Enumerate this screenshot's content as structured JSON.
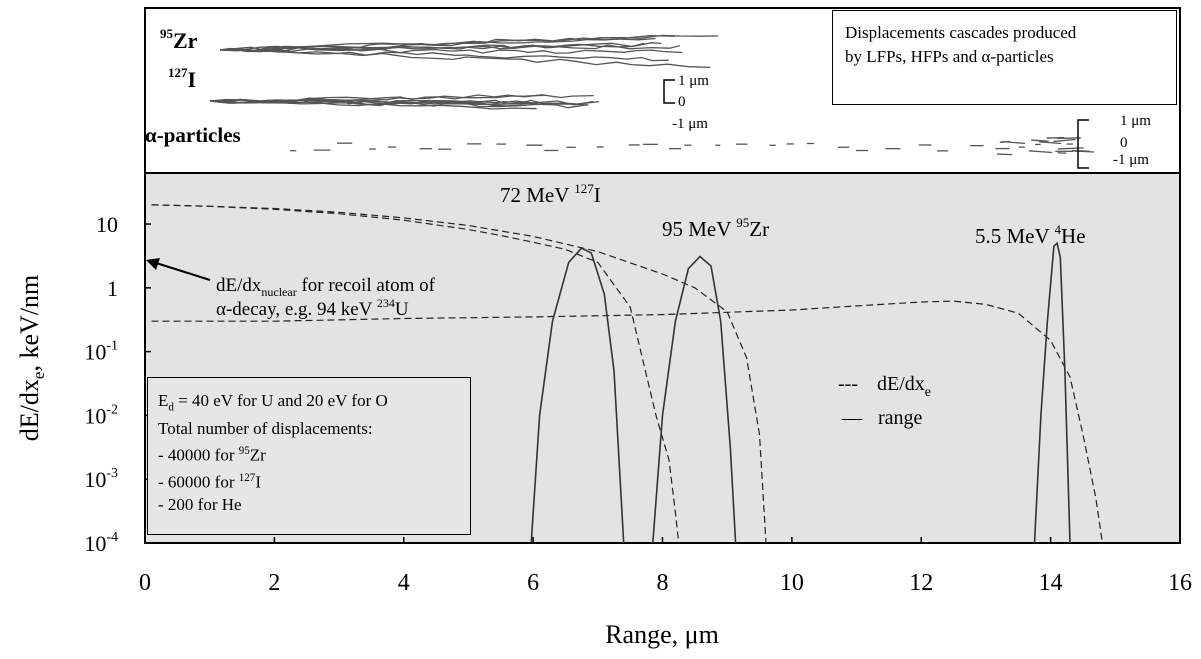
{
  "chart_data": {
    "type": "line",
    "xlabel": "Range, μm",
    "ylabel": "dE/dx",
    "ylabel_sub": "e",
    "ylabel_unit": ", keV/nm",
    "xlim": [
      0,
      16
    ],
    "ylim_log": [
      -4,
      1.8
    ],
    "x_ticks": [
      "0",
      "2",
      "4",
      "6",
      "8",
      "10",
      "12",
      "14",
      "16"
    ],
    "y_ticks": [
      {
        "base": "10",
        "exp": ""
      },
      {
        "base": "1",
        "exp": ""
      },
      {
        "base": "10",
        "exp": "-1"
      },
      {
        "base": "10",
        "exp": "-2"
      },
      {
        "base": "10",
        "exp": "-3"
      },
      {
        "base": "10",
        "exp": "-4"
      }
    ],
    "series": [
      {
        "ion": "127I",
        "style": "dashed",
        "points": [
          [
            0.1,
            20
          ],
          [
            1,
            19
          ],
          [
            2,
            17
          ],
          [
            3,
            14.5
          ],
          [
            4,
            11.5
          ],
          [
            5,
            8.2
          ],
          [
            5.5,
            6.6
          ],
          [
            6,
            5.2
          ],
          [
            6.5,
            4.0
          ],
          [
            7,
            2.5
          ],
          [
            7.5,
            0.5
          ],
          [
            7.9,
            0.01
          ],
          [
            8.1,
            0.002
          ],
          [
            8.2,
            0.0003
          ],
          [
            8.25,
            0.0001
          ]
        ]
      },
      {
        "ion": "95Zr",
        "style": "dashed",
        "points": [
          [
            0.1,
            20
          ],
          [
            1,
            19
          ],
          [
            2,
            17.5
          ],
          [
            3,
            15.3
          ],
          [
            4,
            12.5
          ],
          [
            5,
            9.5
          ],
          [
            6,
            6.4
          ],
          [
            7,
            3.7
          ],
          [
            8,
            1.65
          ],
          [
            8.5,
            1.0
          ],
          [
            9,
            0.42
          ],
          [
            9.3,
            0.08
          ],
          [
            9.5,
            0.005
          ],
          [
            9.6,
            0.0001
          ]
        ]
      },
      {
        "ion": "4He",
        "style": "dashed",
        "points": [
          [
            0.1,
            0.3
          ],
          [
            2,
            0.3
          ],
          [
            4,
            0.33
          ],
          [
            6,
            0.35
          ],
          [
            8,
            0.38
          ],
          [
            10,
            0.45
          ],
          [
            11,
            0.52
          ],
          [
            12,
            0.6
          ],
          [
            12.5,
            0.62
          ],
          [
            13,
            0.55
          ],
          [
            13.5,
            0.4
          ],
          [
            14,
            0.15
          ],
          [
            14.3,
            0.04
          ],
          [
            14.5,
            0.005
          ],
          [
            14.7,
            0.0005
          ],
          [
            14.8,
            0.0001
          ]
        ]
      },
      {
        "ion": "127I",
        "style": "solid",
        "points": [
          [
            5.97,
            0.0001
          ],
          [
            6.1,
            0.01
          ],
          [
            6.3,
            0.3
          ],
          [
            6.55,
            2.5
          ],
          [
            6.75,
            4.2
          ],
          [
            6.9,
            3.5
          ],
          [
            7.1,
            0.8
          ],
          [
            7.25,
            0.05
          ],
          [
            7.4,
            0.0001
          ]
        ]
      },
      {
        "ion": "95Zr",
        "style": "solid",
        "points": [
          [
            7.85,
            0.0001
          ],
          [
            8.0,
            0.01
          ],
          [
            8.2,
            0.3
          ],
          [
            8.4,
            2.0
          ],
          [
            8.58,
            3.1
          ],
          [
            8.75,
            2.2
          ],
          [
            8.9,
            0.3
          ],
          [
            9.05,
            0.003
          ],
          [
            9.13,
            0.0001
          ]
        ]
      },
      {
        "ion": "4He",
        "style": "solid",
        "points": [
          [
            13.75,
            0.0001
          ],
          [
            13.85,
            0.01
          ],
          [
            13.95,
            0.3
          ],
          [
            14.05,
            4.5
          ],
          [
            14.1,
            5
          ],
          [
            14.15,
            3
          ],
          [
            14.22,
            0.05
          ],
          [
            14.3,
            0.0001
          ]
        ]
      }
    ]
  },
  "curve_labels": {
    "iodine": {
      "text": "72 MeV ",
      "sup": "127",
      "tail": "I"
    },
    "zirconium": {
      "text": "95 MeV ",
      "sup": "95",
      "tail": "Zr"
    },
    "helium": {
      "text": "5.5 MeV ",
      "sup": "4",
      "tail": "He"
    }
  },
  "annotation": {
    "line1_main": "dE/dx",
    "line1_sub": "nuclear",
    "line1_tail": " for recoil atom of",
    "line2_main": "α-decay, e.g. 94 keV ",
    "line2_sup": "234",
    "line2_tail": "U"
  },
  "legend": {
    "dashed_symbol": "---",
    "dashed_main": "dE/dx",
    "dashed_sub": "e",
    "solid_symbol": "—",
    "solid_label": "range"
  },
  "info_box": {
    "line1_main": "E",
    "line1_sub": "d",
    "line1_tail": " = 40 eV for U and 20 eV for O",
    "line2": "Total number of displacements:",
    "line3_prefix": "- 40000 for ",
    "line3_sup": "95",
    "line3_tail": "Zr",
    "line4_prefix": "- 60000 for ",
    "line4_sup": "127",
    "line4_tail": "I",
    "line5": "- 200 for He"
  },
  "cascade_panel": {
    "zr_sup": "95",
    "zr_label": "Zr",
    "i_sup": "127",
    "i_label": "I",
    "alpha_label": "α-particles",
    "scale1_top": "1 μm",
    "scale1_mid": "0",
    "scale1_bot": "-1 μm",
    "scale2_top": "1 μm",
    "scale2_mid": "0",
    "scale2_bot": "-1 μm",
    "title_line1": "Displacements cascades produced",
    "title_line2": "by LFPs, HFPs and α-particles"
  }
}
